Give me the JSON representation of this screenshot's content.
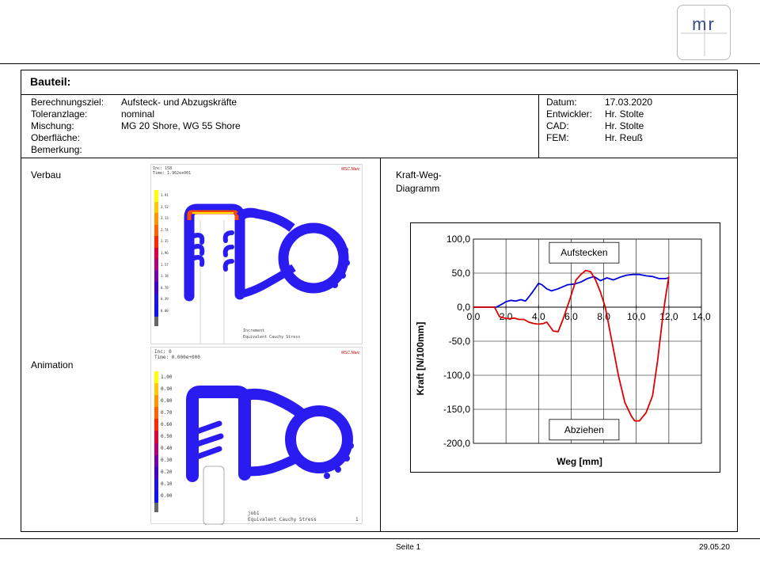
{
  "logo": {
    "text": "mr"
  },
  "header": {
    "title": "Bauteil:"
  },
  "info_left": [
    {
      "label": "Berechnungsziel:",
      "value": "Aufsteck- und Abzugskräfte"
    },
    {
      "label": "Toleranzlage:",
      "value": "nominal"
    },
    {
      "label": "Mischung:",
      "value": "MG 20 Shore, WG 55 Shore"
    },
    {
      "label": "Oberfläche:",
      "value": ""
    },
    {
      "label": "Bemerkung:",
      "value": ""
    }
  ],
  "info_right": [
    {
      "label": "Datum:",
      "value": "17.03.2020"
    },
    {
      "label": "Entwickler:",
      "value": "Hr. Stolte"
    },
    {
      "label": "CAD:",
      "value": "Hr. Stolte"
    },
    {
      "label": "FEM:",
      "value": "Hr. Reuß"
    }
  ],
  "sections": {
    "verbau": "Verbau",
    "animation": "Animation",
    "chart_title_line1": "Kraft-Weg-",
    "chart_title_line2": "Diagramm"
  },
  "sim_top": {
    "inc": "Inc:",
    "inc_value": "158",
    "time": "Time:",
    "time_value": "1.962e+001",
    "brand": "MSC.Marc",
    "legend": [
      "3.91",
      "3.52",
      "3.13",
      "2.74",
      "2.35",
      "1.96",
      "1.57",
      "1.18",
      "0.78",
      "0.39",
      "0.00"
    ],
    "footer1": "Increment",
    "footer2": "Equivalent Cauchy Stress"
  },
  "sim_bottom": {
    "inc": "Inc:",
    "inc_value": "0",
    "time": "Time:",
    "time_value": "0.000e+000",
    "brand": "MSC.Marc",
    "legend": [
      "1.00",
      "0.90",
      "0.80",
      "0.70",
      "0.60",
      "0.50",
      "0.40",
      "0.30",
      "0.20",
      "0.10",
      "0.00"
    ],
    "footer1": "job1",
    "footer2": "Equivalent Cauchy Stress",
    "footer_num": "1"
  },
  "chart_data": {
    "type": "line",
    "title": "Kraft-Weg-Diagramm",
    "xlabel": "Weg [mm]",
    "ylabel": "Kraft [N/100mm]",
    "xlim": [
      0,
      14
    ],
    "ylim": [
      -200,
      100
    ],
    "x_ticks": [
      0,
      2,
      4,
      6,
      8,
      10,
      12,
      14
    ],
    "x_tick_labels": [
      "0,0",
      "2,0",
      "4,0",
      "6,0",
      "8,0",
      "10,0",
      "12,0",
      "14,0"
    ],
    "y_ticks": [
      100,
      50,
      0,
      -50,
      -100,
      -150,
      -200
    ],
    "y_tick_labels": [
      "100,0",
      "50,0",
      "0,0",
      "-50,0",
      "-100,0",
      "-150,0",
      "-200,0"
    ],
    "grid": true,
    "annotations": [
      {
        "text": "Aufstecken",
        "x": 6.8,
        "y": 80
      },
      {
        "text": "Abziehen",
        "x": 6.8,
        "y": -180
      }
    ],
    "series": [
      {
        "color": "#0000dd",
        "x": [
          0,
          1.4,
          1.8,
          2.0,
          2.3,
          2.6,
          2.9,
          3.2,
          3.5,
          3.8,
          4.0,
          4.2,
          4.5,
          4.8,
          5.2,
          5.5,
          5.8,
          6.2,
          6.6,
          7.0,
          7.4,
          7.8,
          8.2,
          8.6,
          9.0,
          9.4,
          9.8,
          10.2,
          10.6,
          11.0,
          11.4,
          11.8,
          12.0
        ],
        "y": [
          0,
          0,
          5,
          8,
          10,
          9,
          11,
          9,
          18,
          28,
          35,
          33,
          27,
          24,
          27,
          30,
          33,
          34,
          37,
          42,
          45,
          39,
          43,
          40,
          44,
          47,
          48,
          48,
          46,
          45,
          42,
          42,
          43
        ]
      },
      {
        "color": "#dd0000",
        "x": [
          0,
          1.3,
          1.6,
          1.9,
          2.2,
          2.5,
          2.8,
          3.1,
          3.4,
          3.7,
          4.0,
          4.3,
          4.5,
          4.9,
          5.2,
          5.5,
          5.9,
          6.3,
          6.6,
          6.9,
          7.2,
          7.5,
          7.8,
          8.1,
          8.5,
          8.9,
          9.3,
          9.7,
          9.9,
          10.2,
          10.6,
          11.0,
          11.3,
          11.6,
          11.8,
          12.0
        ],
        "y": [
          0,
          0,
          -14,
          -16,
          -17,
          -16,
          -18,
          -18,
          -22,
          -24,
          -25,
          -24,
          -22,
          -35,
          -36,
          -18,
          10,
          40,
          48,
          54,
          52,
          40,
          22,
          0,
          -50,
          -100,
          -140,
          -160,
          -167,
          -167,
          -155,
          -130,
          -80,
          -20,
          15,
          45
        ]
      }
    ]
  },
  "footer": {
    "page": "Seite 1",
    "date": "29.05.20"
  }
}
